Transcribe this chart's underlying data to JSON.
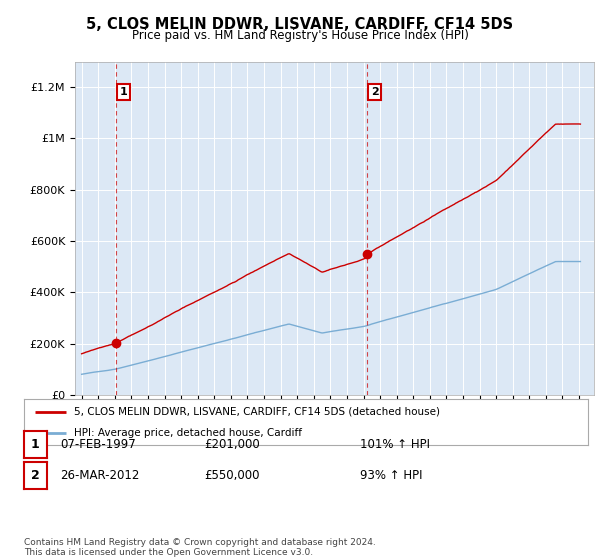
{
  "title": "5, CLOS MELIN DDWR, LISVANE, CARDIFF, CF14 5DS",
  "subtitle": "Price paid vs. HM Land Registry's House Price Index (HPI)",
  "ylim": [
    0,
    1300000
  ],
  "yticks": [
    0,
    200000,
    400000,
    600000,
    800000,
    1000000,
    1200000
  ],
  "ytick_labels": [
    "£0",
    "£200K",
    "£400K",
    "£600K",
    "£800K",
    "£1M",
    "£1.2M"
  ],
  "plot_bg_color": "#dce8f5",
  "sale1_year": 1997.1,
  "sale1_price": 201000,
  "sale2_year": 2012.23,
  "sale2_price": 550000,
  "legend_line1": "5, CLOS MELIN DDWR, LISVANE, CARDIFF, CF14 5DS (detached house)",
  "legend_line2": "HPI: Average price, detached house, Cardiff",
  "table_rows": [
    {
      "num": "1",
      "date": "07-FEB-1997",
      "price": "£201,000",
      "hpi": "101% ↑ HPI"
    },
    {
      "num": "2",
      "date": "26-MAR-2012",
      "price": "£550,000",
      "hpi": "93% ↑ HPI"
    }
  ],
  "footer": "Contains HM Land Registry data © Crown copyright and database right 2024.\nThis data is licensed under the Open Government Licence v3.0.",
  "red_color": "#cc0000",
  "blue_color": "#7aadd4"
}
